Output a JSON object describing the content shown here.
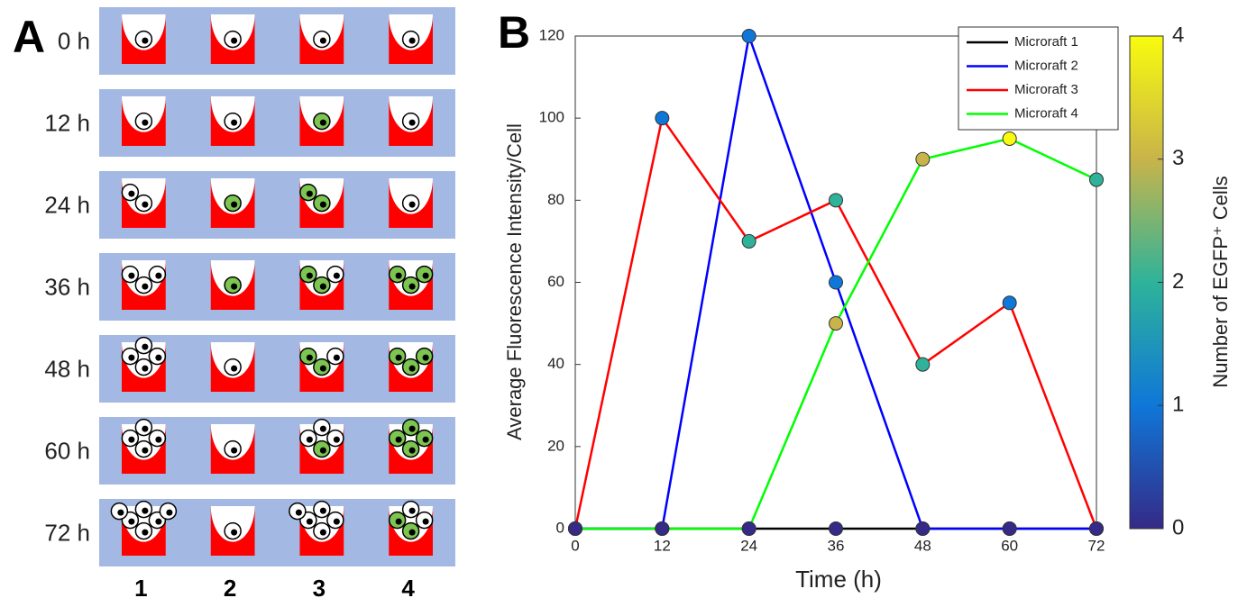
{
  "panel_labels": [
    "A",
    "B"
  ],
  "panel_a": {
    "rows": [
      "0 h",
      "12 h",
      "24 h",
      "36 h",
      "48 h",
      "60 h",
      "72 h"
    ],
    "columns": [
      "1",
      "2",
      "3",
      "4"
    ],
    "well_color": "#ff0000",
    "plate_color": "#a3b8e3",
    "egfp_color": "#7cc551",
    "white_cells": [
      [
        1,
        1,
        1,
        1
      ],
      [
        1,
        1,
        0,
        1
      ],
      [
        2,
        0,
        0,
        1
      ],
      [
        3,
        0,
        1,
        0
      ],
      [
        4,
        1,
        1,
        0
      ],
      [
        4,
        1,
        3,
        0
      ],
      [
        6,
        1,
        5,
        2
      ]
    ],
    "green_cells": [
      [
        0,
        0,
        0,
        0
      ],
      [
        0,
        0,
        1,
        0
      ],
      [
        0,
        1,
        2,
        0
      ],
      [
        0,
        1,
        2,
        3
      ],
      [
        0,
        0,
        2,
        3
      ],
      [
        0,
        0,
        1,
        4
      ],
      [
        0,
        0,
        0,
        2
      ]
    ]
  },
  "chart_data": {
    "type": "line",
    "x_label": "Time (h)",
    "y_label": "Average Fluorescence Intensity/Cell",
    "x": [
      0,
      12,
      24,
      36,
      48,
      60,
      72
    ],
    "xlim": [
      0,
      72
    ],
    "xticks": [
      0,
      12,
      24,
      36,
      48,
      60,
      72
    ],
    "ylim": [
      0,
      120
    ],
    "yticks": [
      0,
      20,
      40,
      60,
      80,
      100,
      120
    ],
    "series": [
      {
        "name": "Microraft 1",
        "color": "#000000",
        "values": [
          0,
          0,
          0,
          0,
          0,
          0,
          0
        ],
        "marker_counts": [
          0,
          0,
          0,
          0,
          0,
          0,
          0
        ]
      },
      {
        "name": "Microraft 2",
        "color": "#0000ff",
        "values": [
          0,
          0,
          120,
          60,
          0,
          0,
          0
        ],
        "marker_counts": [
          0,
          0,
          1,
          1,
          0,
          0,
          0
        ]
      },
      {
        "name": "Microraft 3",
        "color": "#ff0000",
        "values": [
          0,
          100,
          70,
          80,
          40,
          55,
          0
        ],
        "marker_counts": [
          0,
          1,
          2,
          2,
          2,
          1,
          0
        ]
      },
      {
        "name": "Microraft 4",
        "color": "#00ff00",
        "values": [
          0,
          0,
          0,
          50,
          90,
          95,
          85
        ],
        "marker_counts": [
          0,
          0,
          0,
          3,
          3,
          4,
          2
        ]
      }
    ],
    "legend": "upper right",
    "colorbar": {
      "label": "Number of EGFP⁺ Cells",
      "clim": [
        0,
        4
      ],
      "ticks": [
        0,
        1,
        2,
        3,
        4
      ],
      "colormap": [
        "#352a87",
        "#0f77d8",
        "#2eb39a",
        "#c8b44a",
        "#f9fb0e"
      ]
    }
  }
}
